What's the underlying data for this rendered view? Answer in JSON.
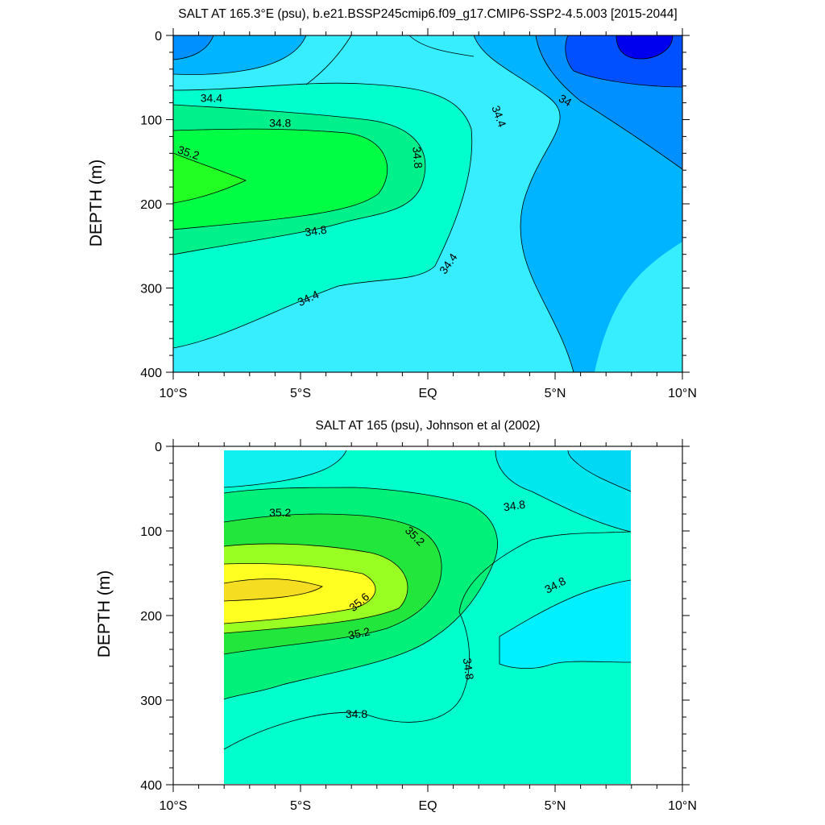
{
  "chart_data": [
    {
      "type": "contour",
      "title": "SALT AT 165.3°E (psu), b.e21.BSSP245cmip6.f09_g17.CMIP6-SSP2-4.5.003 [2015-2044]",
      "xlabel": "",
      "ylabel": "DEPTH (m)",
      "xlim": [
        -10,
        10
      ],
      "ylim": [
        0,
        400
      ],
      "y_reversed": true,
      "xticks": [
        "10°S",
        "5°S",
        "EQ",
        "5°N",
        "10°N"
      ],
      "yticks": [
        "0",
        "100",
        "200",
        "300",
        "400"
      ],
      "contour_labels": [
        {
          "text": "34.4",
          "lat": -8.5,
          "depth": 74,
          "angle": 0
        },
        {
          "text": "34.8",
          "lat": -5.8,
          "depth": 104,
          "angle": 0
        },
        {
          "text": "35.2",
          "lat": -9.4,
          "depth": 139,
          "angle": 18
        },
        {
          "text": "34.8",
          "lat": -0.4,
          "depth": 145,
          "angle": 85
        },
        {
          "text": "34.4",
          "lat": 2.8,
          "depth": 96,
          "angle": 70
        },
        {
          "text": "34",
          "lat": 5.4,
          "depth": 77,
          "angle": 30
        },
        {
          "text": "34.8",
          "lat": -4.4,
          "depth": 232,
          "angle": -8
        },
        {
          "text": "34.4",
          "lat": 0.8,
          "depth": 271,
          "angle": -55
        },
        {
          "text": "34.4",
          "lat": -4.7,
          "depth": 312,
          "angle": -25
        }
      ]
    },
    {
      "type": "contour",
      "title": "SALT AT 165 (psu), Johnson et al (2002)",
      "xlabel": "",
      "ylabel": "DEPTH (m)",
      "xlim": [
        -10,
        10
      ],
      "ylim": [
        0,
        400
      ],
      "y_reversed": true,
      "data_lat_range": [
        -8,
        8
      ],
      "xticks": [
        "10°S",
        "5°S",
        "EQ",
        "5°N",
        "10°N"
      ],
      "yticks": [
        "0",
        "100",
        "200",
        "300",
        "400"
      ],
      "contour_labels": [
        {
          "text": "35.2",
          "lat": -5.8,
          "depth": 78,
          "angle": 0
        },
        {
          "text": "35.2",
          "lat": -0.5,
          "depth": 106,
          "angle": 45
        },
        {
          "text": "34.8",
          "lat": 3.4,
          "depth": 70,
          "angle": -8
        },
        {
          "text": "35.6",
          "lat": -2.7,
          "depth": 184,
          "angle": -40
        },
        {
          "text": "34.8",
          "lat": 5.0,
          "depth": 164,
          "angle": -28
        },
        {
          "text": "35.2",
          "lat": -2.7,
          "depth": 221,
          "angle": -12
        },
        {
          "text": "34.8",
          "lat": 1.6,
          "depth": 263,
          "angle": 82
        },
        {
          "text": "34.8",
          "lat": -2.8,
          "depth": 316,
          "angle": 0
        }
      ]
    }
  ]
}
